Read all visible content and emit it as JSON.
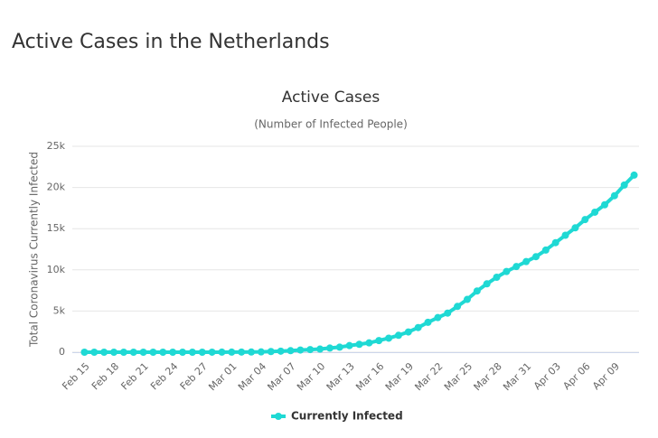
{
  "page_title": "Active Cases in the Netherlands",
  "chart_data": {
    "type": "line",
    "title": "Active Cases",
    "subtitle": "(Number of Infected People)",
    "y_label": "Total Coronavirus Currently Infected",
    "categories": [
      "Feb 15",
      null,
      null,
      "Feb 18",
      null,
      null,
      "Feb 21",
      null,
      null,
      "Feb 24",
      null,
      null,
      "Feb 27",
      null,
      null,
      "Mar 01",
      null,
      null,
      "Mar 04",
      null,
      null,
      "Mar 07",
      null,
      null,
      "Mar 10",
      null,
      null,
      "Mar 13",
      null,
      null,
      "Mar 16",
      null,
      null,
      "Mar 19",
      null,
      null,
      "Mar 22",
      null,
      null,
      "Mar 25",
      null,
      null,
      "Mar 28",
      null,
      null,
      "Mar 31",
      null,
      null,
      "Apr 03",
      null,
      null,
      "Apr 06",
      null,
      null,
      "Apr 09",
      null,
      null
    ],
    "series": [
      {
        "name": "Currently Infected",
        "color": "#1fd9d4",
        "values": [
          0,
          0,
          0,
          0,
          0,
          0,
          0,
          0,
          0,
          0,
          0,
          0,
          1,
          2,
          7,
          10,
          18,
          24,
          38,
          82,
          128,
          188,
          265,
          321,
          382,
          503,
          614,
          804,
          959,
          1135,
          1413,
          1705,
          2051,
          2460,
          2994,
          3631,
          4204,
          4749,
          5560,
          6412,
          7431,
          8300,
          9100,
          9800,
          10400,
          11000,
          11600,
          12400,
          13300,
          14200,
          15100,
          16100,
          17000,
          17900,
          19000,
          20300,
          21500
        ]
      }
    ],
    "ylim": [
      0,
      25000
    ],
    "yticks": [
      0,
      {
        "value": 5000,
        "label": "5k"
      },
      {
        "value": 10000,
        "label": "10k"
      },
      {
        "value": 15000,
        "label": "15k"
      },
      {
        "value": 20000,
        "label": "20k"
      },
      {
        "value": 25000,
        "label": "25k"
      }
    ],
    "grid": true
  }
}
